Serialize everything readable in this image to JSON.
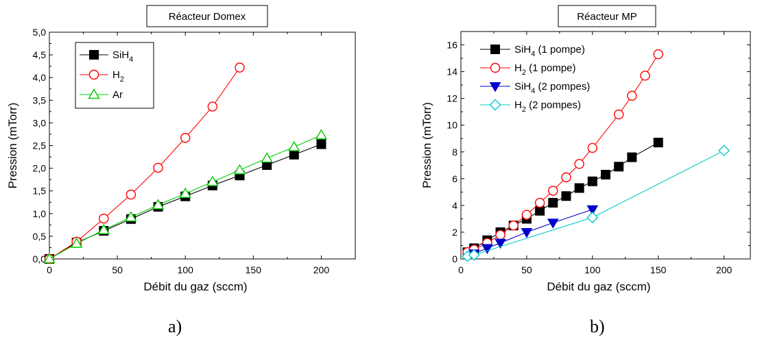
{
  "chart_data": [
    {
      "type": "line",
      "title": "Réacteur Domex",
      "xlabel": "Débit du gaz (sccm)",
      "ylabel": "Pression (mTorr)",
      "xlim": [
        0,
        225
      ],
      "ylim": [
        0,
        5.0
      ],
      "xticks": [
        "0",
        "50",
        "100",
        "150",
        "200"
      ],
      "yticks": [
        "0,0",
        "0,5",
        "1,0",
        "1,5",
        "2,0",
        "2,5",
        "3,0",
        "3,5",
        "4,0",
        "4,5",
        "5,0"
      ],
      "grid": false,
      "legend_position": "top-left",
      "caption": "a)",
      "series": [
        {
          "name": "SiH4",
          "name_main": "SiH",
          "name_sub": "4",
          "name_rest": "",
          "color": "#000000",
          "marker": "square-filled",
          "x": [
            0,
            20,
            40,
            60,
            80,
            100,
            120,
            140,
            160,
            180,
            200
          ],
          "y": [
            0.0,
            0.36,
            0.62,
            0.88,
            1.15,
            1.38,
            1.62,
            1.84,
            2.07,
            2.3,
            2.53
          ]
        },
        {
          "name": "H2",
          "name_main": "H",
          "name_sub": "2",
          "name_rest": "",
          "color": "#ff0000",
          "marker": "circle-open",
          "x": [
            0,
            20,
            40,
            60,
            80,
            100,
            120,
            140
          ],
          "y": [
            0.0,
            0.38,
            0.89,
            1.42,
            2.01,
            2.67,
            3.36,
            4.22
          ]
        },
        {
          "name": "Ar",
          "name_main": "Ar",
          "name_sub": "",
          "name_rest": "",
          "color": "#00cc00",
          "marker": "triangle-open",
          "x": [
            0,
            20,
            40,
            60,
            80,
            100,
            120,
            140,
            160,
            180,
            200
          ],
          "y": [
            0.0,
            0.34,
            0.64,
            0.92,
            1.19,
            1.44,
            1.7,
            1.96,
            2.22,
            2.47,
            2.73
          ]
        }
      ]
    },
    {
      "type": "line",
      "title": "Réacteur MP",
      "xlabel": "Débit du gaz (sccm)",
      "ylabel": "Pression (mTorr)",
      "xlim": [
        0,
        220
      ],
      "ylim": [
        0,
        17
      ],
      "xticks": [
        "0",
        "50",
        "100",
        "150",
        "200"
      ],
      "yticks": [
        "0",
        "2",
        "4",
        "6",
        "8",
        "10",
        "12",
        "14",
        "16"
      ],
      "grid": false,
      "legend_position": "top-left",
      "caption": "b)",
      "series": [
        {
          "name": "SiH4 (1 pompe)",
          "name_main": "SiH",
          "name_sub": "4",
          "name_rest": " (1 pompe)",
          "color": "#000000",
          "marker": "square-filled",
          "x": [
            5,
            10,
            20,
            30,
            40,
            50,
            60,
            70,
            80,
            90,
            100,
            110,
            120,
            130,
            150
          ],
          "y": [
            0.5,
            0.8,
            1.4,
            2.0,
            2.5,
            3.0,
            3.6,
            4.2,
            4.7,
            5.3,
            5.8,
            6.3,
            6.9,
            7.6,
            8.7
          ]
        },
        {
          "name": "H2 (1 pompe)",
          "name_main": "H",
          "name_sub": "2",
          "name_rest": " (1 pompe)",
          "color": "#ff0000",
          "marker": "circle-open",
          "x": [
            5,
            10,
            20,
            30,
            40,
            50,
            60,
            70,
            80,
            90,
            100,
            120,
            130,
            140,
            150
          ],
          "y": [
            0.5,
            0.7,
            1.2,
            1.8,
            2.5,
            3.3,
            4.2,
            5.1,
            6.1,
            7.1,
            8.3,
            10.8,
            12.2,
            13.7,
            15.3
          ]
        },
        {
          "name": "SiH4 (2 pompes)",
          "name_main": "SiH",
          "name_sub": "4",
          "name_rest": " (2 pompes)",
          "color": "#0000cc",
          "marker": "triangle-down-filled",
          "x": [
            10,
            20,
            30,
            50,
            70,
            100
          ],
          "y": [
            0.4,
            0.8,
            1.2,
            2.0,
            2.7,
            3.7
          ]
        },
        {
          "name": "H2 (2 pompes)",
          "name_main": "H",
          "name_sub": "2",
          "name_rest": " (2 pompes)",
          "color": "#00cccc",
          "marker": "diamond-open",
          "x": [
            5,
            10,
            100,
            200
          ],
          "y": [
            0.2,
            0.3,
            3.1,
            8.1
          ]
        }
      ]
    }
  ]
}
